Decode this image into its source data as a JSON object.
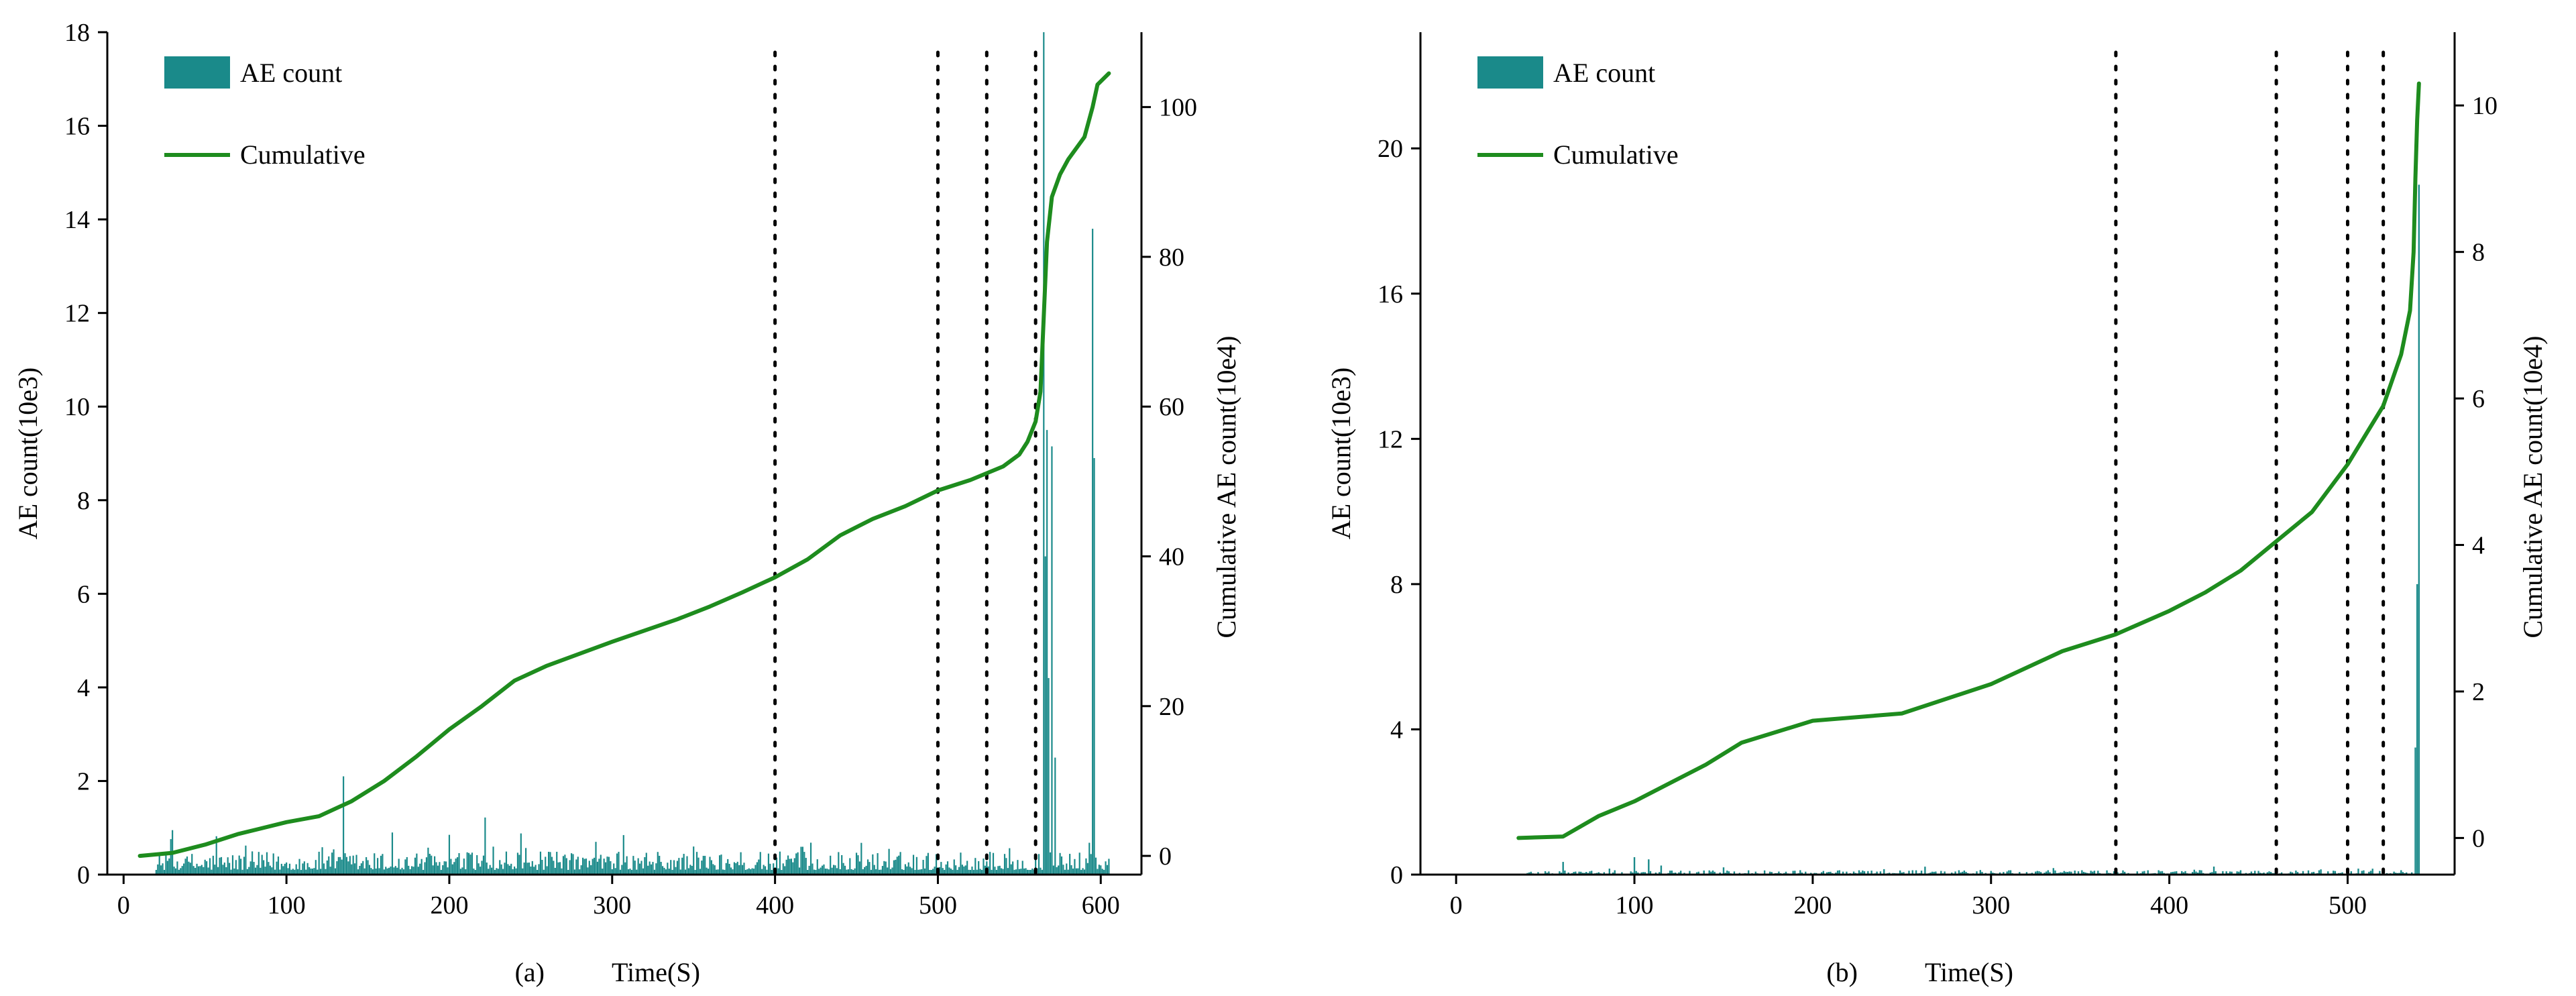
{
  "colors": {
    "bar": "#1a8a8a",
    "line": "#1e8c1e",
    "axis": "#000000",
    "marker_line": "#000000"
  },
  "chart_data": [
    {
      "panel": "a",
      "type": "bar+line",
      "panel_label": "(a)",
      "xlabel": "Time(S)",
      "ylabel_left": "AE count(10e3)",
      "ylabel_right": "Cumulative AE count(10e4)",
      "xlim": [
        -10,
        625
      ],
      "xticks": [
        0,
        100,
        200,
        300,
        400,
        500,
        600
      ],
      "ylim_left": [
        0,
        18
      ],
      "yticks_left": [
        0,
        2,
        4,
        6,
        8,
        10,
        12,
        14,
        16,
        18
      ],
      "ylim_right": [
        -2.5,
        110
      ],
      "yticks_right": [
        0,
        20,
        40,
        60,
        80,
        100
      ],
      "vlines": [
        400,
        500,
        530,
        560
      ],
      "legend": {
        "bar_label": "AE count",
        "line_label": "Cumulative",
        "position": "top-left"
      },
      "series_bar": {
        "name": "AE count",
        "start": 20,
        "end": 605,
        "step": 1,
        "baseline_level": 0.25,
        "noise_level": 0.18,
        "spikes": [
          [
            30,
            0.95
          ],
          [
            57,
            0.82
          ],
          [
            75,
            0.62
          ],
          [
            135,
            2.1
          ],
          [
            165,
            0.9
          ],
          [
            200,
            0.85
          ],
          [
            222,
            1.22
          ],
          [
            244,
            0.88
          ],
          [
            290,
            0.7
          ],
          [
            350,
            0.6
          ],
          [
            470,
            0.55
          ],
          [
            565,
            18.0
          ],
          [
            566,
            6.8
          ],
          [
            567,
            9.5
          ],
          [
            568,
            4.2
          ],
          [
            570,
            9.15
          ],
          [
            572,
            2.5
          ],
          [
            595,
            13.8
          ],
          [
            596,
            8.9
          ]
        ]
      },
      "series_line": {
        "name": "Cumulative",
        "x": [
          10,
          30,
          50,
          70,
          100,
          120,
          140,
          160,
          180,
          200,
          220,
          240,
          260,
          300,
          340,
          360,
          380,
          400,
          420,
          440,
          460,
          480,
          500,
          520,
          540,
          550,
          555,
          560,
          563,
          565,
          567,
          570,
          575,
          580,
          590,
          595,
          598,
          605
        ],
        "y": [
          0,
          0.4,
          1.5,
          2.9,
          4.5,
          5.3,
          7.3,
          10.0,
          13.3,
          16.9,
          20.0,
          23.4,
          25.4,
          28.6,
          31.6,
          33.3,
          35.2,
          37.2,
          39.6,
          42.8,
          45.0,
          46.7,
          48.8,
          50.2,
          52.0,
          53.6,
          55.3,
          58.0,
          62.0,
          72.0,
          82.0,
          88.0,
          91.0,
          93.0,
          96.0,
          100.0,
          103.0,
          104.5
        ]
      }
    },
    {
      "panel": "b",
      "type": "bar+line",
      "panel_label": "(b)",
      "xlabel": "Time(S)",
      "ylabel_left": "AE count(10e3)",
      "ylabel_right": "Cumulative AE count(10e4)",
      "xlim": [
        -20,
        560
      ],
      "xticks": [
        0,
        100,
        200,
        300,
        400,
        500
      ],
      "ylim_left": [
        0,
        23.2
      ],
      "yticks_left": [
        0,
        4,
        8,
        12,
        16,
        20
      ],
      "ylim_right": [
        -0.5,
        11
      ],
      "yticks_right": [
        0,
        2,
        4,
        6,
        8,
        10
      ],
      "vlines": [
        370,
        460,
        500,
        520
      ],
      "legend": {
        "bar_label": "AE count",
        "line_label": "Cumulative",
        "position": "top-left"
      },
      "series_bar": {
        "name": "AE count",
        "start": 40,
        "end": 540,
        "step": 1,
        "baseline_level": 0.03,
        "noise_level": 0.05,
        "spikes": [
          [
            60,
            0.35
          ],
          [
            100,
            0.48
          ],
          [
            108,
            0.42
          ],
          [
            115,
            0.25
          ],
          [
            150,
            0.2
          ],
          [
            240,
            0.15
          ],
          [
            335,
            0.18
          ],
          [
            440,
            0.12
          ],
          [
            538,
            3.5
          ],
          [
            539,
            8.0
          ],
          [
            540,
            19.0
          ]
        ]
      },
      "series_line": {
        "name": "Cumulative",
        "x": [
          35,
          60,
          80,
          100,
          120,
          140,
          160,
          180,
          200,
          250,
          300,
          340,
          370,
          400,
          420,
          440,
          460,
          480,
          500,
          520,
          530,
          535,
          537,
          538,
          539,
          540
        ],
        "y": [
          0,
          0.02,
          0.3,
          0.5,
          0.75,
          1.0,
          1.3,
          1.45,
          1.6,
          1.7,
          2.1,
          2.55,
          2.78,
          3.1,
          3.35,
          3.65,
          4.05,
          4.45,
          5.1,
          5.9,
          6.6,
          7.2,
          8.0,
          9.0,
          9.8,
          10.3
        ]
      }
    }
  ]
}
